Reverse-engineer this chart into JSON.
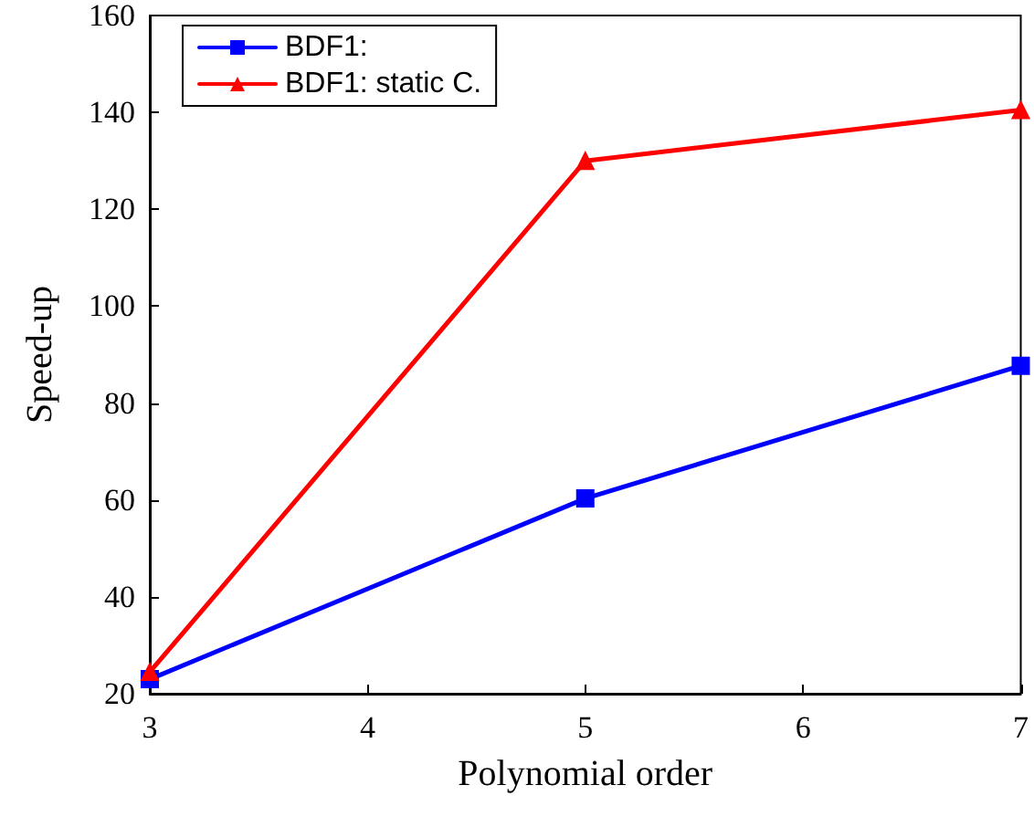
{
  "chart_data": {
    "type": "line",
    "xlabel": "Polynomial order",
    "ylabel": "Speed-up",
    "x": [
      3,
      5,
      7
    ],
    "series": [
      {
        "name": "BDF1:",
        "color": "#0000ff",
        "marker": "square",
        "values": [
          23,
          60.3,
          87.7
        ]
      },
      {
        "name": "BDF1: static C.",
        "color": "#ff0000",
        "marker": "triangle",
        "values": [
          24.5,
          130,
          140.5
        ]
      }
    ],
    "xlim": [
      3,
      7
    ],
    "xticks": [
      3,
      4,
      5,
      6,
      7
    ],
    "ylim": [
      20,
      160
    ],
    "yticks": [
      20,
      40,
      60,
      80,
      100,
      120,
      140,
      160
    ],
    "grid": false,
    "legend": "top left",
    "line_style": "solid"
  }
}
